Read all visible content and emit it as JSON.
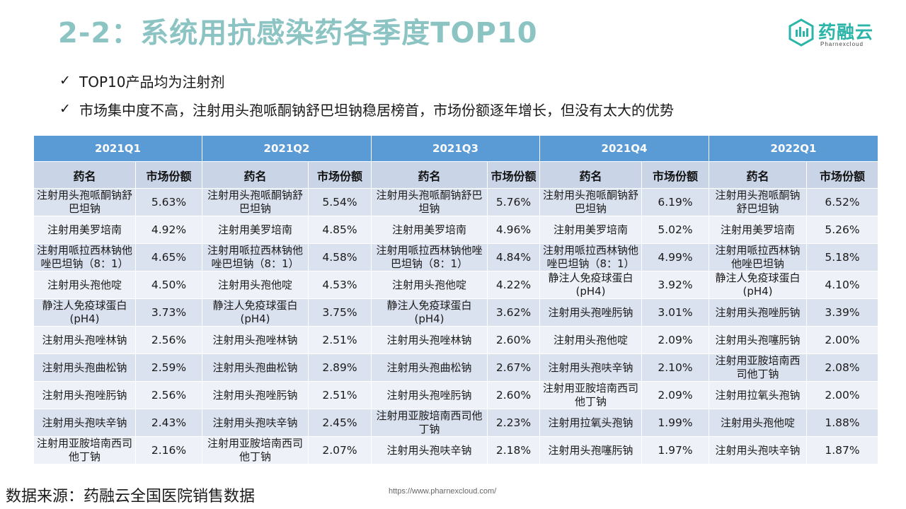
{
  "title": "2-2：系统用抗感染药各季度TOP10",
  "logo": {
    "name": "药融云",
    "subtitle": "Pharnexcloud"
  },
  "bullets": [
    "TOP10产品均为注射剂",
    "市场集中度不高，注射用头孢哌酮钠舒巴坦钠稳居榜首，市场份额逐年增长，但没有太大的优势"
  ],
  "table": {
    "quarters": [
      "2021Q1",
      "2021Q2",
      "2021Q3",
      "2021Q4",
      "2022Q1"
    ],
    "col_drug": "药名",
    "col_share": "市场份额",
    "rows": [
      [
        {
          "drug": "注射用头孢哌酮钠舒巴坦钠",
          "share": "5.63%"
        },
        {
          "drug": "注射用头孢哌酮钠舒巴坦钠",
          "share": "5.54%"
        },
        {
          "drug": "注射用头孢哌酮钠舒巴坦钠",
          "share": "5.76%"
        },
        {
          "drug": "注射用头孢哌酮钠舒巴坦钠",
          "share": "6.19%"
        },
        {
          "drug": "注射用头孢哌酮钠舒巴坦钠",
          "share": "6.52%"
        }
      ],
      [
        {
          "drug": "注射用美罗培南",
          "share": "4.92%"
        },
        {
          "drug": "注射用美罗培南",
          "share": "4.85%"
        },
        {
          "drug": "注射用美罗培南",
          "share": "4.96%"
        },
        {
          "drug": "注射用美罗培南",
          "share": "5.02%"
        },
        {
          "drug": "注射用美罗培南",
          "share": "5.26%"
        }
      ],
      [
        {
          "drug": "注射用哌拉西林钠他唑巴坦钠（8：1）",
          "share": "4.65%"
        },
        {
          "drug": "注射用哌拉西林钠他唑巴坦钠（8：1）",
          "share": "4.58%"
        },
        {
          "drug": "注射用哌拉西林钠他唑巴坦钠（8：1）",
          "share": "4.84%"
        },
        {
          "drug": "注射用哌拉西林钠他唑巴坦钠（8：1）",
          "share": "4.99%"
        },
        {
          "drug": "注射用哌拉西林钠他唑巴坦钠",
          "share": "5.18%"
        }
      ],
      [
        {
          "drug": "注射用头孢他啶",
          "share": "4.50%"
        },
        {
          "drug": "注射用头孢他啶",
          "share": "4.53%"
        },
        {
          "drug": "注射用头孢他啶",
          "share": "4.22%"
        },
        {
          "drug": "静注人免疫球蛋白(pH4)",
          "share": "3.92%"
        },
        {
          "drug": "静注人免疫球蛋白(pH4)",
          "share": "4.10%"
        }
      ],
      [
        {
          "drug": "静注人免疫球蛋白(pH4)",
          "share": "3.73%"
        },
        {
          "drug": "静注人免疫球蛋白(pH4)",
          "share": "3.75%"
        },
        {
          "drug": "静注人免疫球蛋白(pH4)",
          "share": "3.62%"
        },
        {
          "drug": "注射用头孢唑肟钠",
          "share": "3.01%"
        },
        {
          "drug": "注射用头孢唑肟钠",
          "share": "3.39%"
        }
      ],
      [
        {
          "drug": "注射用头孢唑林钠",
          "share": "2.56%"
        },
        {
          "drug": "注射用头孢唑林钠",
          "share": "2.51%"
        },
        {
          "drug": "注射用头孢唑林钠",
          "share": "2.60%"
        },
        {
          "drug": "注射用头孢他啶",
          "share": "2.09%"
        },
        {
          "drug": "注射用头孢噻肟钠",
          "share": "2.00%"
        }
      ],
      [
        {
          "drug": "注射用头孢曲松钠",
          "share": "2.59%"
        },
        {
          "drug": "注射用头孢曲松钠",
          "share": "2.89%"
        },
        {
          "drug": "注射用头孢曲松钠",
          "share": "2.67%"
        },
        {
          "drug": "注射用头孢呋辛钠",
          "share": "2.10%"
        },
        {
          "drug": "注射用亚胺培南西司他丁钠",
          "share": "2.08%"
        }
      ],
      [
        {
          "drug": "注射用头孢唑肟钠",
          "share": "2.56%"
        },
        {
          "drug": "注射用头孢唑肟钠",
          "share": "2.51%"
        },
        {
          "drug": "注射用头孢唑肟钠",
          "share": "2.60%"
        },
        {
          "drug": "注射用亚胺培南西司他丁钠",
          "share": "2.09%"
        },
        {
          "drug": "注射用拉氧头孢钠",
          "share": "2.00%"
        }
      ],
      [
        {
          "drug": "注射用头孢呋辛钠",
          "share": "2.43%"
        },
        {
          "drug": "注射用头孢呋辛钠",
          "share": "2.45%"
        },
        {
          "drug": "注射用亚胺培南西司他丁钠",
          "share": "2.23%"
        },
        {
          "drug": "注射用拉氧头孢钠",
          "share": "1.99%"
        },
        {
          "drug": "注射用头孢他啶",
          "share": "1.88%"
        }
      ],
      [
        {
          "drug": "注射用亚胺培南西司他丁钠",
          "share": "2.16%"
        },
        {
          "drug": "注射用亚胺培南西司他丁钠",
          "share": "2.07%"
        },
        {
          "drug": "注射用头孢呋辛钠",
          "share": "2.18%"
        },
        {
          "drug": "注射用头孢噻肟钠",
          "share": "1.97%"
        },
        {
          "drug": "注射用头孢呋辛钠",
          "share": "1.87%"
        }
      ]
    ]
  },
  "source": "数据来源：药融云全国医院销售数据",
  "url": "https://www.pharnexcloud.com/",
  "colors": {
    "title": "#8cc3c3",
    "brand": "#2bb5a8",
    "quarter_header": "#5b9bd5",
    "column_header": "#c9d4e7",
    "row_odd": "#dbe2ef",
    "row_even": "#eef1f7"
  }
}
